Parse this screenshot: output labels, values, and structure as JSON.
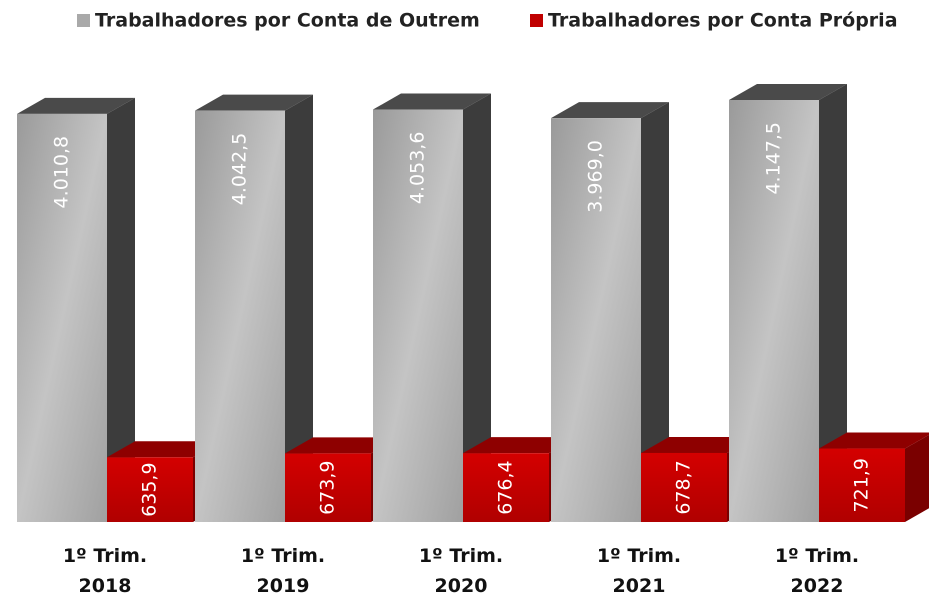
{
  "chart_data": {
    "type": "bar3d",
    "categories": [
      "1º Trim. 2018",
      "1º Trim. 2019",
      "1º Trim. 2020",
      "1º Trim. 2021",
      "1º Trim. 2022"
    ],
    "series": [
      {
        "name": "Trabalhadores por Conta de Outrem",
        "color": "#a9a9a9",
        "values": [
          4010.8,
          4042.5,
          4053.6,
          3969.0,
          4147.5
        ],
        "value_labels": [
          "4.010,8",
          "4.042,5",
          "4.053,6",
          "3.969,0",
          "4.147,5"
        ]
      },
      {
        "name": "Trabalhadores por Conta Própria",
        "color": "#c00000",
        "values": [
          635.9,
          673.9,
          676.4,
          678.7,
          721.9
        ],
        "value_labels": [
          "635,9",
          "673,9",
          "676,4",
          "678,7",
          "721,9"
        ]
      }
    ],
    "legend": "top"
  }
}
